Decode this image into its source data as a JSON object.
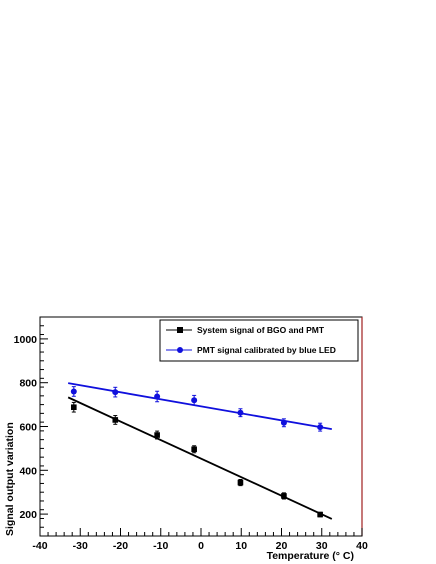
{
  "chart_data": {
    "type": "scatter",
    "xlabel": "Temperature (° C)",
    "ylabel": "Signal output variation",
    "xlim": [
      -40,
      40
    ],
    "ylim": [
      100,
      1100
    ],
    "x_ticks": [
      -40,
      -30,
      -20,
      -10,
      0,
      10,
      20,
      30,
      40
    ],
    "y_ticks": [
      200,
      400,
      600,
      800,
      1000
    ],
    "x_tick_labels": [
      "-40",
      "-30",
      "-20",
      "-10",
      "0",
      "10",
      "20",
      "30",
      "40"
    ],
    "y_tick_labels": [
      "200",
      "400",
      "600",
      "800",
      "1000"
    ],
    "legend_position": "top-right",
    "series": [
      {
        "name": "System signal of BGO and PMT",
        "marker": "square",
        "color": "#000000",
        "x": [
          -31.6,
          -21.3,
          -10.9,
          -1.7,
          9.8,
          20.6,
          29.6
        ],
        "y": [
          688,
          630,
          561,
          496,
          344,
          283,
          198
        ],
        "yerr": [
          22,
          20,
          18,
          16,
          14,
          14,
          10
        ],
        "fit": {
          "x": [
            -33,
            32.5
          ],
          "y": [
            733,
            178
          ]
        }
      },
      {
        "name": "PMT signal calibrated by blue LED",
        "marker": "circle",
        "color": "#1010dd",
        "x": [
          -31.6,
          -21.3,
          -10.9,
          -1.7,
          9.8,
          20.6,
          29.6
        ],
        "y": [
          760,
          757,
          737,
          720,
          663,
          617,
          597
        ],
        "yerr": [
          22,
          22,
          24,
          22,
          18,
          18,
          18
        ],
        "fit": {
          "x": [
            -33,
            32.5
          ],
          "y": [
            798,
            588
          ]
        }
      }
    ]
  }
}
